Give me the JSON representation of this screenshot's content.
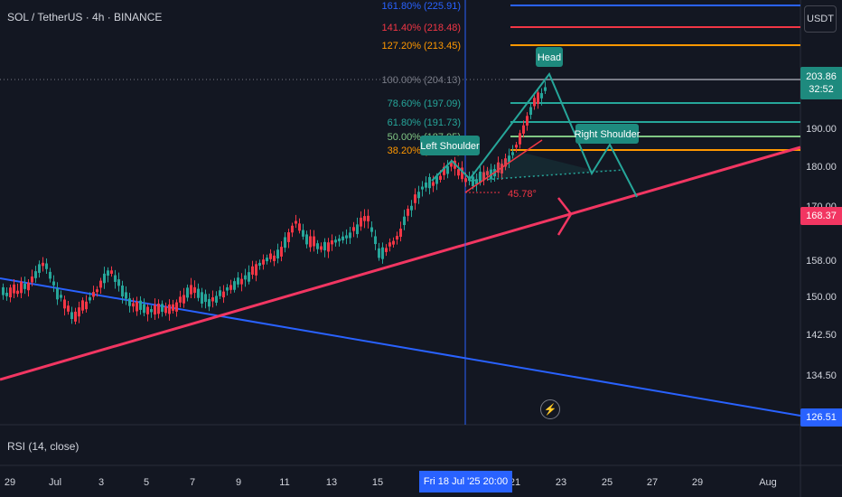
{
  "header": {
    "symbol": "SOL / TetherUS · 4h · BINANCE",
    "currency_button": "USDT"
  },
  "fib_levels": [
    {
      "label": "161.80% (225.91)",
      "color": "#2962ff"
    },
    {
      "label": "141.40% (218.48)",
      "color": "#f23645"
    },
    {
      "label": "127.20% (213.45)",
      "color": "#ff9800"
    },
    {
      "label": "100.00% (204.13)",
      "color": "#787b86"
    },
    {
      "label": "78.60% (197.09)",
      "color": "#26a69a"
    },
    {
      "label": "61.80% (191.73)",
      "color": "#26a69a"
    },
    {
      "label": "50.00% (187.95)",
      "color": "#81c784"
    },
    {
      "label": "38.20% (184.17)",
      "color": "#ff9800"
    }
  ],
  "pattern_labels": {
    "left_shoulder": "Left Shoulder",
    "head": "Head",
    "right_shoulder": "Right Shoulder",
    "angle": "45.78°"
  },
  "price_axis": {
    "ticks": [
      "190.00",
      "180.00",
      "170.00",
      "158.00",
      "150.00",
      "142.50",
      "134.50"
    ],
    "current_price": "203.86",
    "countdown": "32:52",
    "tag_red": "168.37",
    "tag_blue": "126.51"
  },
  "time_axis": {
    "ticks": [
      "29",
      "Jul",
      "3",
      "5",
      "7",
      "9",
      "11",
      "13",
      "15",
      "21",
      "23",
      "25",
      "27",
      "29",
      "Aug"
    ],
    "crosshair_date": "Fri 18 Jul '25   20:00"
  },
  "indicator": {
    "rsi_label": "RSI (14, close)"
  },
  "colors": {
    "up": "#26a69a",
    "down": "#f23645",
    "blue_line": "#2962ff",
    "pink_line": "#f23662",
    "background": "#131722"
  },
  "icons": {
    "lightning": "lightning-icon"
  }
}
